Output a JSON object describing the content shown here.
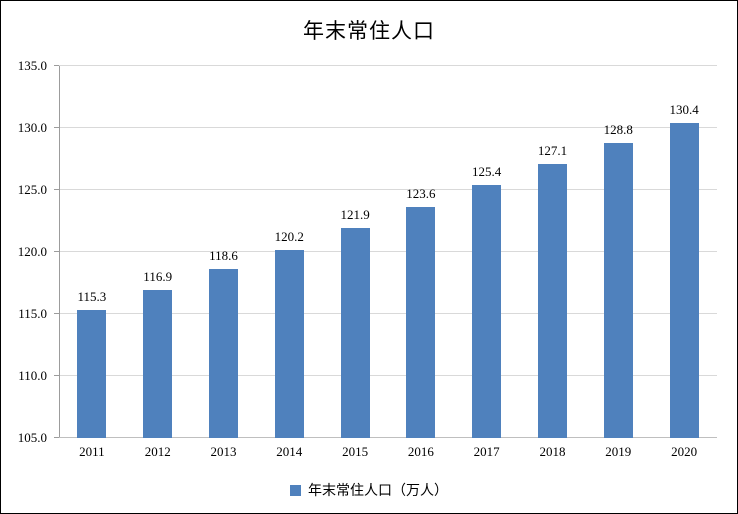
{
  "chart_data": {
    "type": "bar",
    "title": "年末常住人口",
    "categories": [
      "2011",
      "2012",
      "2013",
      "2014",
      "2015",
      "2016",
      "2017",
      "2018",
      "2019",
      "2020"
    ],
    "values": [
      115.3,
      116.9,
      118.6,
      120.2,
      121.9,
      123.6,
      125.4,
      127.1,
      128.8,
      130.4
    ],
    "value_labels": [
      "115.3",
      "116.9",
      "118.6",
      "120.2",
      "121.9",
      "123.6",
      "125.4",
      "127.1",
      "128.8",
      "130.4"
    ],
    "ylim": [
      105,
      135
    ],
    "y_ticks": [
      "105.0",
      "110.0",
      "115.0",
      "120.0",
      "125.0",
      "130.0",
      "135.0"
    ],
    "xlabel": "",
    "ylabel": "",
    "legend_label": "年末常住人口（万人）",
    "legend_position": "bottom",
    "grid": "on",
    "bar_color": "#4f81bd",
    "gridline_color": "#d9d9d9",
    "axis_color": "#9c9c9c"
  }
}
